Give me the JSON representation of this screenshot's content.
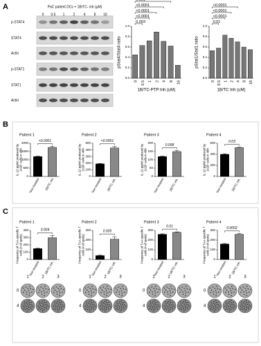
{
  "panels": [
    "A",
    "B",
    "C"
  ],
  "blot": {
    "header": "PaC patient DCs + 1B/TC- inh (µM)",
    "lanes": [
      "0",
      "0.5",
      "1",
      "2",
      "4",
      "8",
      "16"
    ],
    "rows": [
      "p-STAT4",
      "STAT4",
      "Actin",
      "p-STAT1",
      "STAT1",
      "Actin"
    ]
  },
  "elispot": [
    {
      "cols": [
        "1",
        "2",
        "3"
      ],
      "rows": [
        "0",
        "4"
      ]
    },
    {
      "cols": [
        "1",
        "2",
        "3"
      ],
      "rows": [
        "0",
        "4"
      ]
    },
    {
      "cols": [
        "1",
        "2",
        "3"
      ],
      "rows": [
        "0",
        "4"
      ]
    },
    {
      "cols": [
        "1",
        "2",
        "3"
      ],
      "rows": [
        "0",
        "4"
      ]
    }
  ],
  "chart_data": [
    {
      "type": "bar",
      "ylabel": "pStat4/Stat4 ratio",
      "xlabel": "1B/TC-PTP Inh (uM)",
      "categories": [
        "0",
        "0.5",
        "1",
        "2",
        "4",
        "8",
        "16"
      ],
      "values": [
        0.45,
        0.63,
        0.72,
        0.89,
        0.71,
        0.62,
        0.25
      ],
      "ylim": [
        0,
        1.0
      ],
      "yticks": [
        {
          "value": 0,
          "label": "0.0"
        },
        {
          "value": 0.2,
          "label": "0.2"
        },
        {
          "value": 0.4,
          "label": "0.4"
        },
        {
          "value": 0.6,
          "label": "0.6"
        },
        {
          "value": 0.8,
          "label": "0.8"
        },
        {
          "value": 1.0,
          "label": "1.0"
        }
      ],
      "color": "#777777",
      "annotations": [
        "0.003",
        "<0.0001",
        "<0.0001",
        "<0.0001",
        "0.001"
      ]
    },
    {
      "type": "bar",
      "ylabel": "pStat1/Stat1 ratio",
      "xlabel": "1B/TC Inh (uM)",
      "categories": [
        "0",
        "0.5",
        "1",
        "2",
        "4",
        "8",
        "16"
      ],
      "values": [
        0.53,
        0.58,
        0.83,
        0.77,
        0.7,
        0.6,
        0.55
      ],
      "ylim": [
        0,
        1.0
      ],
      "yticks": [
        {
          "value": 0,
          "label": "0.0"
        },
        {
          "value": 0.2,
          "label": "0.2"
        },
        {
          "value": 0.4,
          "label": "0.4"
        },
        {
          "value": 0.6,
          "label": "0.6"
        },
        {
          "value": 0.8,
          "label": "0.8"
        },
        {
          "value": 1.0,
          "label": "1.0"
        }
      ],
      "color": "#777777",
      "annotations": [
        "0.01",
        "<0.0001",
        "<0.0001",
        "<0.0001"
      ]
    },
    {
      "type": "bar",
      "title": "Patient 1",
      "ylabel": "IL-12 pg/ml produced by 1x10⁵ cells in 48h",
      "categories": [
        "Non-treated",
        "1B/TC inh"
      ],
      "values": [
        1200,
        1750
      ],
      "errors": [
        30,
        60
      ],
      "colors": [
        "#000000",
        "#888888"
      ],
      "ylim": [
        0,
        2000
      ],
      "yticks": [
        0,
        500,
        1000,
        1500,
        2000
      ],
      "annotations": [
        "<0.0001"
      ]
    },
    {
      "type": "bar",
      "title": "Patient 2",
      "ylabel": "IL-12 pg/ml produced by 1x10⁵ cells in 48h",
      "categories": [
        "Non-treated",
        "1B/TC inh."
      ],
      "values": [
        190,
        430
      ],
      "errors": [
        5,
        20
      ],
      "colors": [
        "#000000",
        "#888888"
      ],
      "ylim": [
        0,
        500
      ],
      "yticks": [
        0,
        100,
        200,
        300,
        400,
        500
      ],
      "annotations": [
        "<0.0001"
      ]
    },
    {
      "type": "bar",
      "title": "Patient 3",
      "ylabel": "IL-12 pg/ml produced by 1x10⁵ cells in 48h",
      "categories": [
        "Non-treated",
        "1B/TC inh."
      ],
      "values": [
        120,
        150
      ],
      "errors": [
        3,
        6
      ],
      "colors": [
        "#000000",
        "#888888"
      ],
      "ylim": [
        0,
        200
      ],
      "yticks": [
        0,
        50,
        100,
        150,
        200
      ],
      "annotations": [
        "0.008"
      ]
    },
    {
      "type": "bar",
      "title": "Patient 4",
      "ylabel": "IL-12 pg/ml produced by 1x10⁵ cells in 48h",
      "categories": [
        "Non-treated",
        "1B/TC inh."
      ],
      "values": [
        400,
        520
      ],
      "errors": [
        10,
        8
      ],
      "colors": [
        "#000000",
        "#888888"
      ],
      "ylim": [
        0,
        600
      ],
      "yticks": [
        0,
        200,
        400,
        600
      ],
      "annotations": [
        "0.03"
      ]
    },
    {
      "type": "bar",
      "title": "Patient 1",
      "ylabel": "Frequency of TAA-specific T cells (# of spots)",
      "categories": [
        "Non-treated",
        "1B/TC inh."
      ],
      "values": [
        150,
        300
      ],
      "errors": [
        5,
        30
      ],
      "colors": [
        "#000000",
        "#888888"
      ],
      "ylim": [
        0,
        400
      ],
      "yticks": [
        0,
        100,
        200,
        300,
        400
      ],
      "annotations": [
        "0.004"
      ]
    },
    {
      "type": "bar",
      "title": "Patient 2",
      "ylabel": "Frequency of TAA-specific T cells (# of spots)",
      "categories": [
        "Non-treated",
        "1B/TC inh."
      ],
      "values": [
        40,
        210
      ],
      "errors": [
        5,
        25
      ],
      "colors": [
        "#000000",
        "#888888"
      ],
      "ylim": [
        0,
        300
      ],
      "yticks": [
        0,
        100,
        200,
        300
      ],
      "annotations": [
        "0.005"
      ]
    },
    {
      "type": "bar",
      "title": "Patient 3",
      "ylabel": "Frequency of TAA-specific T cells (# of spots)",
      "categories": [
        "Non-treated",
        "1B/TC inh."
      ],
      "values": [
        260,
        280
      ],
      "errors": [
        5,
        5
      ],
      "colors": [
        "#000000",
        "#888888"
      ],
      "ylim": [
        0,
        300
      ],
      "yticks": [
        0,
        100,
        200,
        300
      ],
      "annotations": [
        "0.01"
      ]
    },
    {
      "type": "bar",
      "title": "Patient 4",
      "ylabel": "Frequency of TAA-specific T cells (# of spots)",
      "categories": [
        "Non-treated",
        "1B/TC inh."
      ],
      "values": [
        160,
        260
      ],
      "errors": [
        5,
        6
      ],
      "colors": [
        "#000000",
        "#888888"
      ],
      "ylim": [
        0,
        300
      ],
      "yticks": [
        0,
        100,
        200,
        300
      ],
      "annotations": [
        "0.0002"
      ]
    }
  ]
}
